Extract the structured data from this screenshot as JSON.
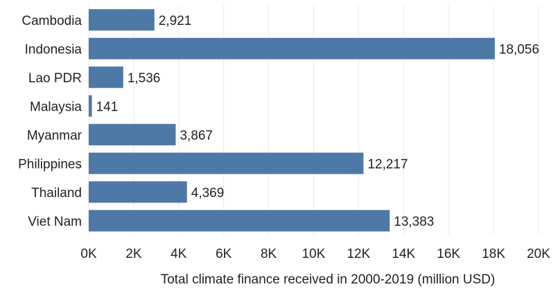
{
  "chart_data": {
    "type": "bar",
    "orientation": "horizontal",
    "title": "",
    "categories": [
      "Cambodia",
      "Indonesia",
      "Lao PDR",
      "Malaysia",
      "Myanmar",
      "Philippines",
      "Thailand",
      "Viet Nam"
    ],
    "values": [
      2921,
      18056,
      1536,
      141,
      3867,
      12217,
      4369,
      13383
    ],
    "value_labels": [
      "2,921",
      "18,056",
      "1,536",
      "141",
      "3,867",
      "12,217",
      "4,369",
      "13,383"
    ],
    "xlabel": "Total climate finance received in 2000-2019 (million USD)",
    "ylabel": "",
    "xlim": [
      0,
      20000
    ],
    "xticks": [
      0,
      2000,
      4000,
      6000,
      8000,
      10000,
      12000,
      14000,
      16000,
      18000,
      20000
    ],
    "xtick_labels": [
      "0K",
      "2K",
      "4K",
      "6K",
      "8K",
      "10K",
      "12K",
      "14K",
      "16K",
      "18K",
      "20K"
    ],
    "grid": "vertical",
    "legend": "none",
    "bar_color": "#4e79a7"
  }
}
